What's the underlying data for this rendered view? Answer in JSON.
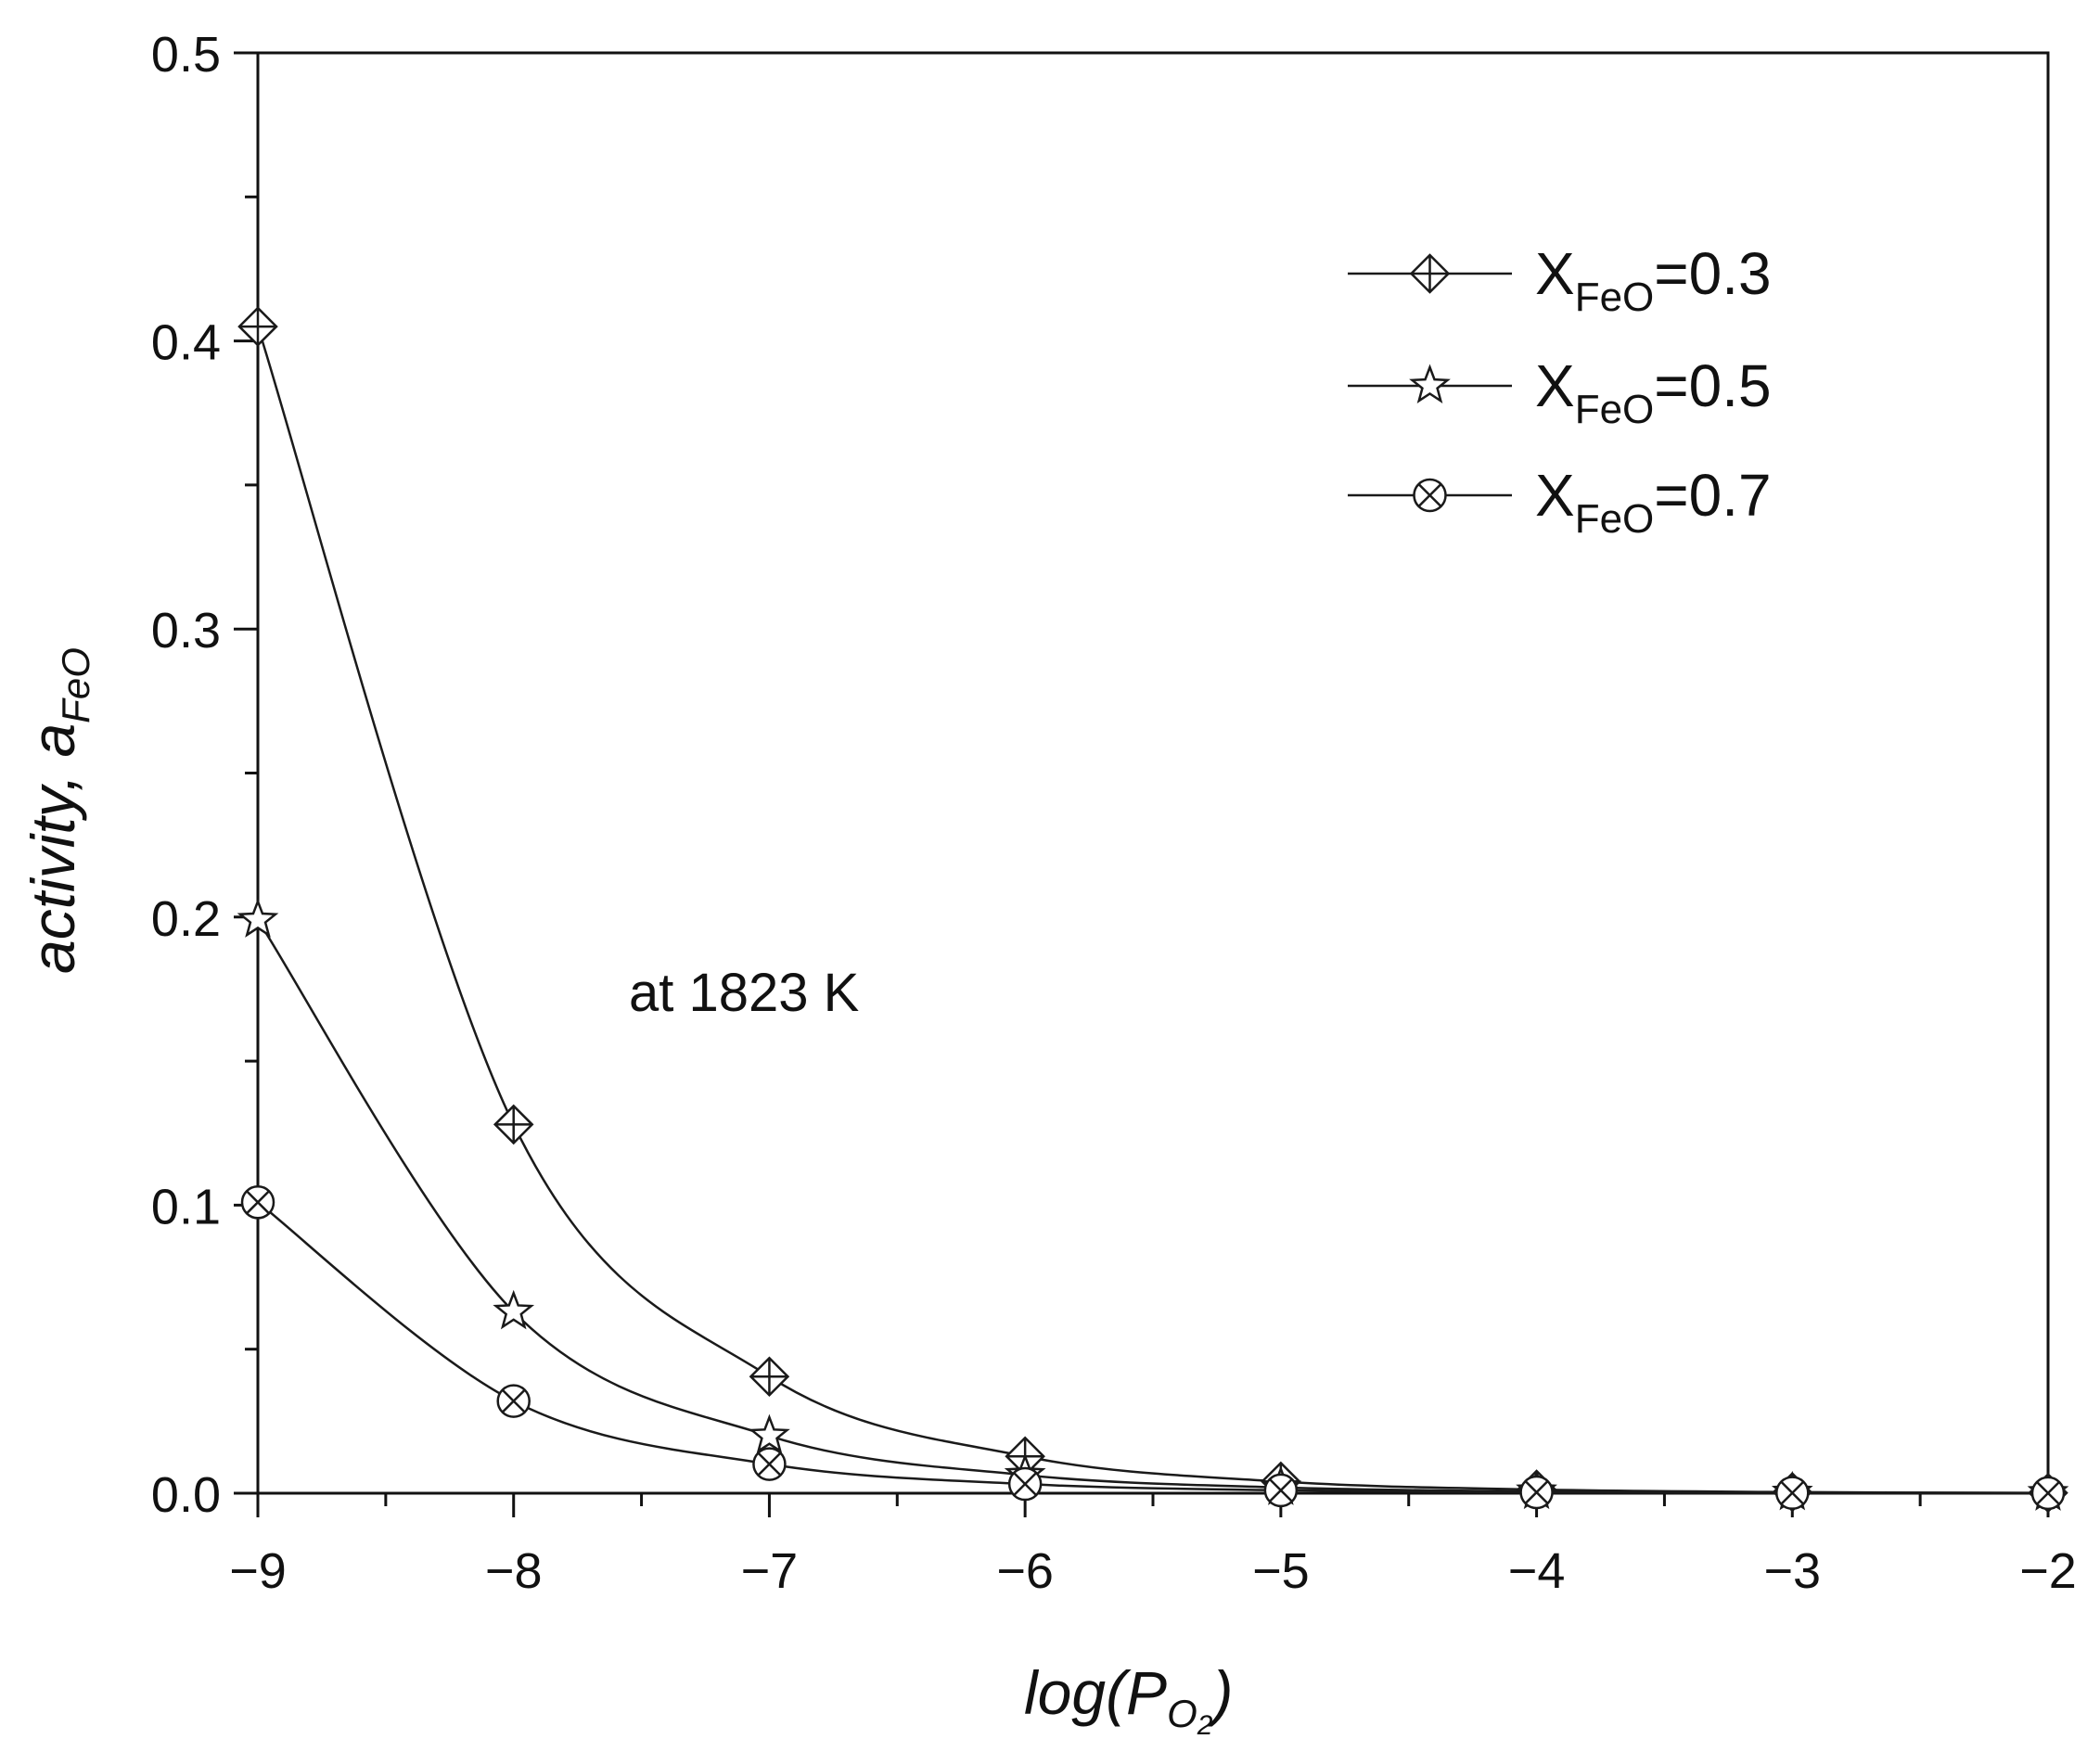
{
  "chart_data": {
    "type": "line",
    "x_axis": {
      "title": "log(P",
      "title_sub": "O",
      "title_sub2": "2",
      "title_end": ")",
      "range": [
        -9,
        -2
      ],
      "ticks": [
        -9,
        -8,
        -7,
        -6,
        -5,
        -4,
        -3,
        -2
      ],
      "tick_labels": [
        "−9",
        "−8",
        "−7",
        "−6",
        "−5",
        "−4",
        "−3",
        "−2"
      ]
    },
    "y_axis": {
      "title": "activity, a",
      "title_sub": "FeO",
      "range": [
        0.0,
        0.5
      ],
      "ticks": [
        0.0,
        0.1,
        0.2,
        0.3,
        0.4,
        0.5
      ],
      "tick_labels": [
        "0.0",
        "0.1",
        "0.2",
        "0.3",
        "0.4",
        "0.5"
      ]
    },
    "annotation": "at 1823 K",
    "legend_position": "top-right",
    "series": [
      {
        "name": "X",
        "name_sub": "FeO",
        "name_value": "=0.3",
        "marker": "diamond-plus",
        "x": [
          -9,
          -8,
          -7,
          -6,
          -5,
          -4,
          -3,
          -2
        ],
        "y": [
          0.405,
          0.128,
          0.0405,
          0.0128,
          0.00405,
          0.00128,
          0.000405,
          0.000128
        ]
      },
      {
        "name": "X",
        "name_sub": "FeO",
        "name_value": "=0.5",
        "marker": "star",
        "x": [
          -9,
          -8,
          -7,
          -6,
          -5,
          -4,
          -3,
          -2
        ],
        "y": [
          0.199,
          0.063,
          0.0199,
          0.0063,
          0.00199,
          0.00063,
          0.000199,
          6.3e-05
        ]
      },
      {
        "name": "X",
        "name_sub": "FeO",
        "name_value": "=0.7",
        "marker": "circle-x",
        "x": [
          -9,
          -8,
          -7,
          -6,
          -5,
          -4,
          -3,
          -2
        ],
        "y": [
          0.101,
          0.032,
          0.0101,
          0.0032,
          0.00101,
          0.00032,
          0.000101,
          3.2e-05
        ]
      }
    ],
    "colors": {
      "line": "#1a1a1a",
      "marker_fill": "#ffffff",
      "axis": "#111111"
    }
  }
}
